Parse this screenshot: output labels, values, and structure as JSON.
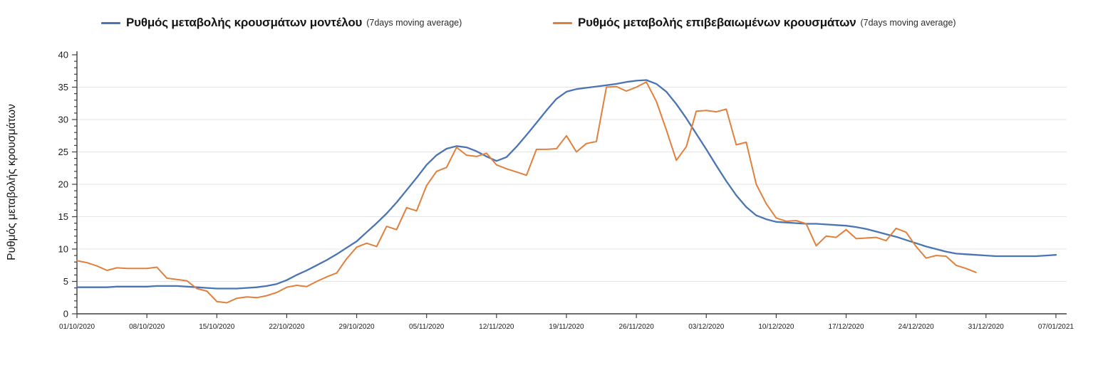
{
  "chart_data": {
    "type": "line",
    "title": "",
    "ylabel": "Ρυθμός μεταβολής κρουσμάτων",
    "xlabel": "",
    "ylim": [
      0,
      40
    ],
    "ytick_step": 5,
    "y_minor_tick_step": 1,
    "grid": "horizontal-light",
    "legend_position": "top",
    "x_unit": "daily",
    "x_tick_labels": [
      "01/10/2020",
      "08/10/2020",
      "15/10/2020",
      "22/10/2020",
      "29/10/2020",
      "05/11/2020",
      "12/11/2020",
      "19/11/2020",
      "26/11/2020",
      "03/12/2020",
      "10/12/2020",
      "17/12/2020",
      "24/12/2020",
      "31/12/2020",
      "07/01/2021"
    ],
    "x_tick_interval_days": 7,
    "series": [
      {
        "name": "Ρυθμός μεταβολής κρουσμάτων μοντέλου",
        "qualifier": "(7days moving average)",
        "color": "#4a74b4",
        "values": [
          4.1,
          4.1,
          4.1,
          4.1,
          4.2,
          4.2,
          4.2,
          4.2,
          4.3,
          4.3,
          4.3,
          4.2,
          4.1,
          4.0,
          3.9,
          3.9,
          3.9,
          4.0,
          4.1,
          4.3,
          4.6,
          5.2,
          6.0,
          6.7,
          7.5,
          8.3,
          9.2,
          10.2,
          11.2,
          12.6,
          14.0,
          15.5,
          17.2,
          19.1,
          21.0,
          23.0,
          24.5,
          25.5,
          25.9,
          25.7,
          25.1,
          24.3,
          23.6,
          24.2,
          25.8,
          27.6,
          29.5,
          31.4,
          33.2,
          34.3,
          34.7,
          34.9,
          35.1,
          35.3,
          35.5,
          35.8,
          36.0,
          36.1,
          35.5,
          34.3,
          32.4,
          30.2,
          27.8,
          25.4,
          22.9,
          20.5,
          18.3,
          16.5,
          15.2,
          14.6,
          14.2,
          14.1,
          14.0,
          13.9,
          13.9,
          13.8,
          13.7,
          13.6,
          13.4,
          13.1,
          12.7,
          12.3,
          11.9,
          11.4,
          10.9,
          10.4,
          10.0,
          9.6,
          9.3,
          9.2,
          9.1,
          9.0,
          8.9,
          8.9,
          8.9,
          8.9,
          8.9,
          9.0,
          9.1
        ]
      },
      {
        "name": "Ρυθμός μεταβολής επιβεβαιωμένων κρουσμάτων",
        "qualifier": "(7days moving average)",
        "color": "#e0803c",
        "values": [
          8.2,
          7.9,
          7.4,
          6.7,
          7.1,
          7.0,
          7.0,
          7.0,
          7.2,
          5.5,
          5.3,
          5.1,
          3.9,
          3.5,
          1.9,
          1.7,
          2.4,
          2.6,
          2.5,
          2.8,
          3.3,
          4.1,
          4.4,
          4.2,
          5.0,
          5.7,
          6.3,
          8.5,
          10.3,
          10.9,
          10.4,
          13.5,
          13.0,
          16.4,
          15.9,
          19.8,
          22.0,
          22.6,
          25.7,
          24.5,
          24.3,
          24.8,
          23.0,
          22.4,
          21.9,
          21.4,
          25.4,
          25.4,
          25.5,
          27.5,
          25.0,
          26.3,
          26.6,
          35.0,
          35.1,
          34.4,
          35.0,
          35.8,
          32.8,
          28.4,
          23.7,
          25.8,
          31.3,
          31.4,
          31.2,
          31.6,
          26.1,
          26.5,
          20.0,
          17.0,
          14.8,
          14.3,
          14.4,
          13.9,
          10.5,
          12.0,
          11.8,
          13.0,
          11.6,
          11.7,
          11.8,
          11.3,
          13.2,
          12.6,
          10.4,
          8.6,
          9.0,
          8.9,
          7.5,
          7.0,
          6.4
        ]
      }
    ]
  }
}
